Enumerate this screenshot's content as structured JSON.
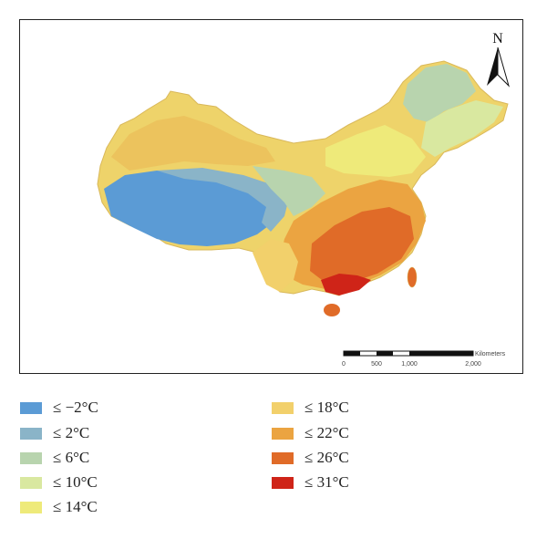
{
  "map": {
    "north_label": "N",
    "scale_bar": {
      "unit_label": "Kilometers",
      "ticks": [
        "0",
        "500",
        "1,000",
        "2,000"
      ]
    }
  },
  "legend": {
    "left": [
      {
        "label": "≤ −2°C",
        "color": "#5b9bd5"
      },
      {
        "label": "≤ 2°C",
        "color": "#8ab4c8"
      },
      {
        "label": "≤ 6°C",
        "color": "#b8d4ae"
      },
      {
        "label": "≤ 10°C",
        "color": "#d9e8a0"
      },
      {
        "label": "≤ 14°C",
        "color": "#eeea7a"
      }
    ],
    "right": [
      {
        "label": "≤ 18°C",
        "color": "#f2d06b"
      },
      {
        "label": "≤ 22°C",
        "color": "#eba441"
      },
      {
        "label": "≤ 26°C",
        "color": "#e06b28"
      },
      {
        "label": "≤ 31°C",
        "color": "#cf2418"
      }
    ]
  }
}
